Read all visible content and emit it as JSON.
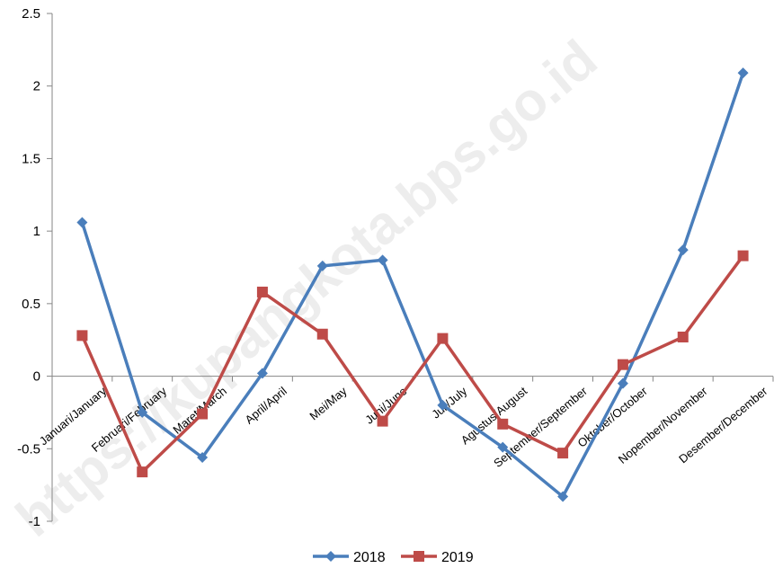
{
  "watermark": "https://kupangkota.bps.go.id",
  "chart_data": {
    "type": "line",
    "categories": [
      "Januari/January",
      "Februari/February",
      "Maret/March",
      "April/April",
      "Mei/May",
      "Juni/June",
      "Juli/July",
      "Agustus/August",
      "September/September",
      "Oktober/October",
      "Nopember/November",
      "Desember/December"
    ],
    "series": [
      {
        "name": "2018",
        "color": "#4A7EBB",
        "marker": "diamond",
        "values": [
          1.06,
          -0.25,
          -0.56,
          0.02,
          0.76,
          0.8,
          -0.2,
          -0.49,
          -0.83,
          -0.05,
          0.87,
          2.09
        ]
      },
      {
        "name": "2019",
        "color": "#BE4B48",
        "marker": "square",
        "values": [
          0.28,
          -0.66,
          -0.26,
          0.58,
          0.29,
          -0.31,
          0.26,
          -0.33,
          -0.53,
          0.08,
          0.27,
          0.83
        ]
      }
    ],
    "ylim": [
      -1,
      2.5
    ],
    "yticks": [
      2.5,
      2,
      1.5,
      1,
      0.5,
      0,
      -0.5,
      -1
    ],
    "ytick_labels": [
      "2.5",
      "2",
      "1.5",
      "1",
      "0.5",
      "0",
      "-0.5",
      "-1"
    ],
    "grid": false,
    "legend": "bottom"
  }
}
